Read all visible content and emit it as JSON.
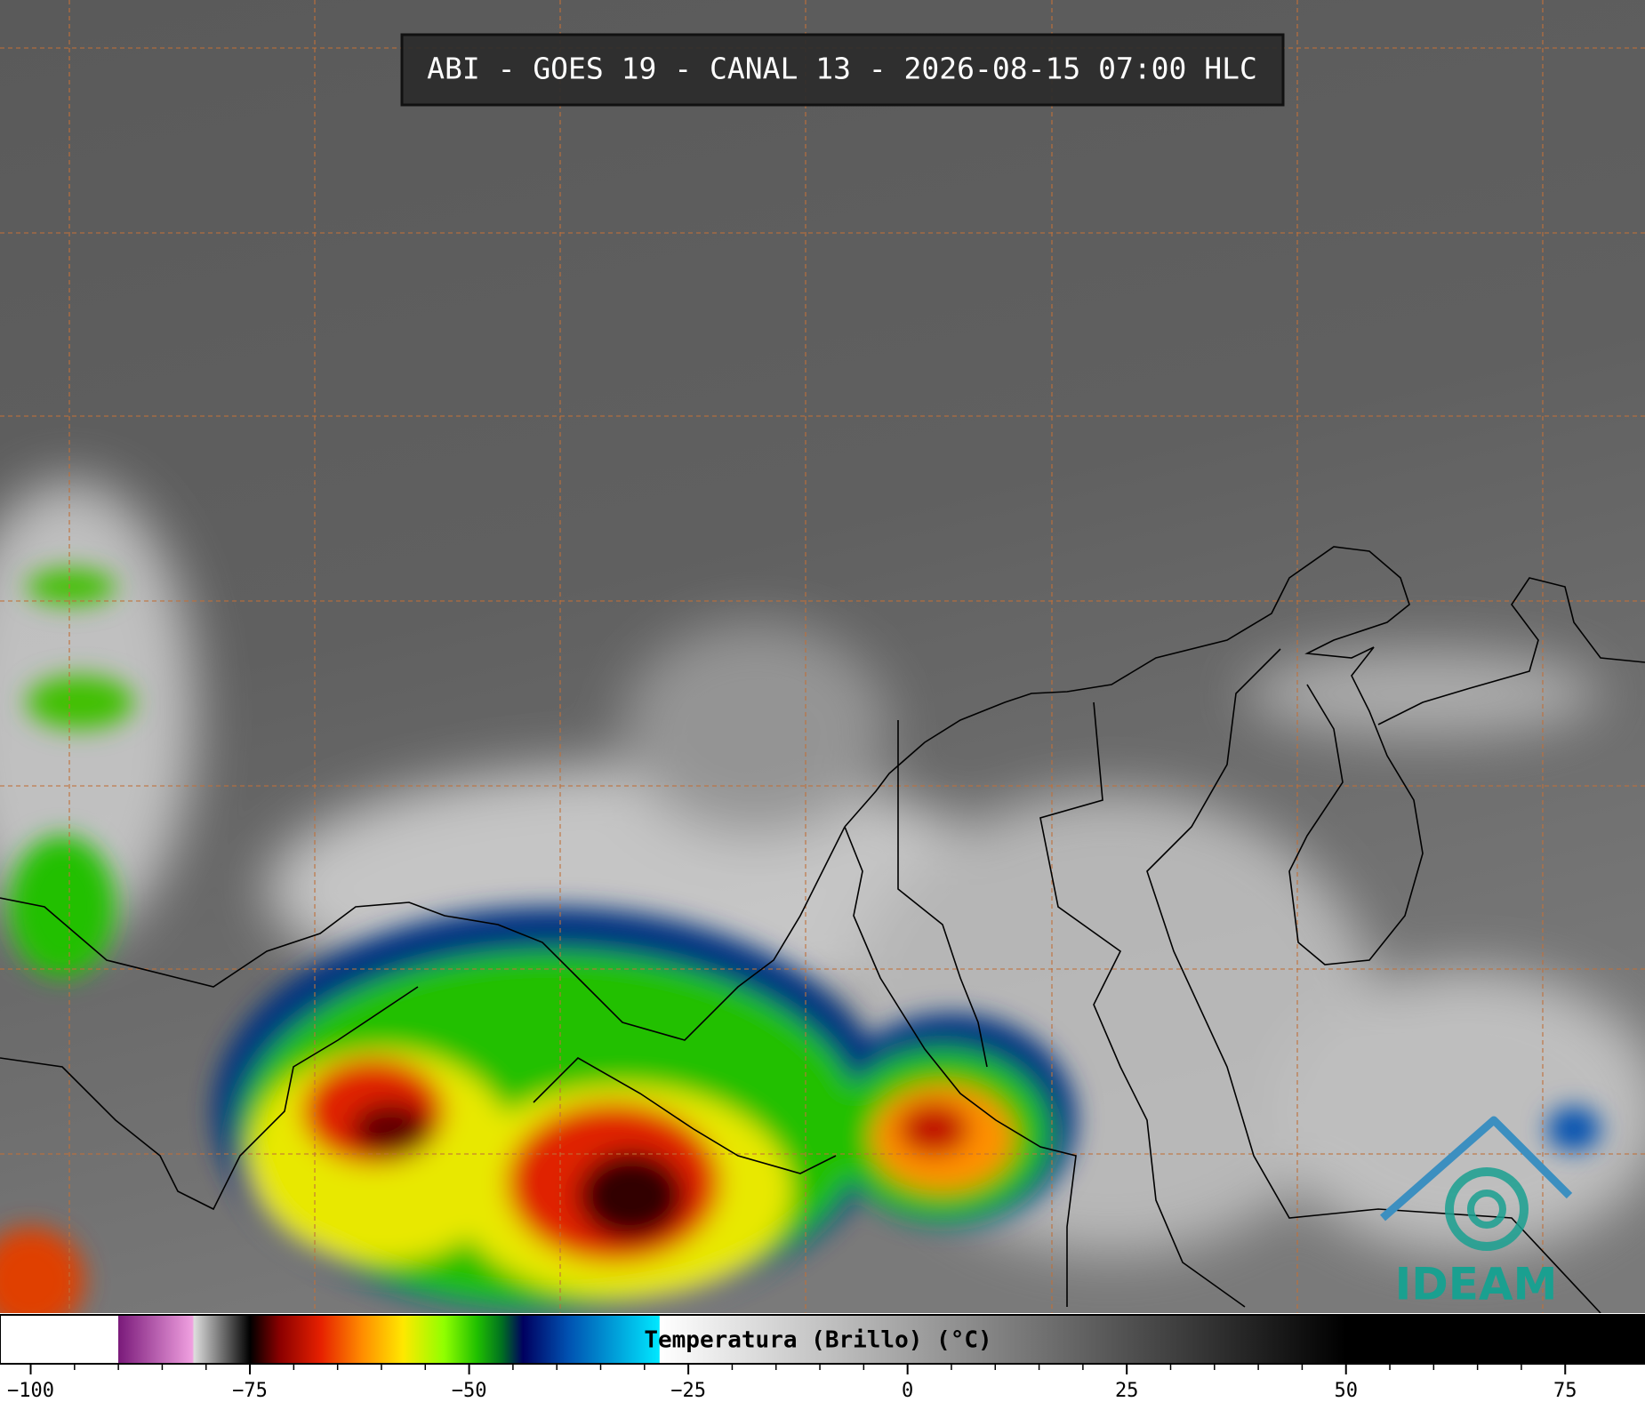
{
  "header": {
    "title": "ABI - GOES 19 - CANAL 13 - 2026-08-15 07:00 HLC"
  },
  "logo": {
    "text": "IDEAM"
  },
  "colorbar": {
    "label": "Temperatura (Brillo) (°C)",
    "xlim": [
      -103.5,
      84.1
    ],
    "xticks": [
      {
        "value": -100,
        "label": "−100"
      },
      {
        "value": -75,
        "label": "−75"
      },
      {
        "value": -50,
        "label": "−50"
      },
      {
        "value": -25,
        "label": "−25"
      },
      0,
      25,
      50,
      75
    ]
  }
}
